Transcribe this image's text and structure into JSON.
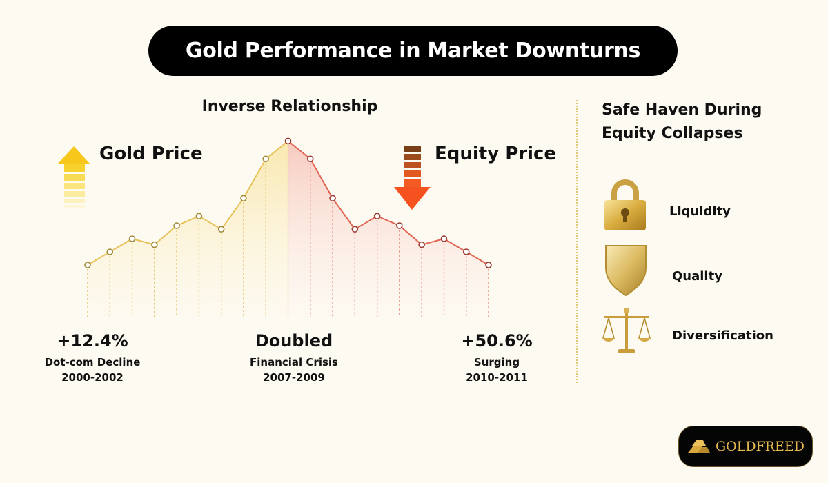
{
  "title": "Gold Performance in Market Downturns",
  "chart_data": {
    "type": "line",
    "title": "Inverse Relationship",
    "series": [
      {
        "name": "Gold Price",
        "values": [
          20,
          31,
          42,
          37,
          53,
          61,
          50,
          76,
          109,
          124
        ]
      },
      {
        "name": "Equity Price",
        "values": [
          124,
          109,
          76,
          50,
          61,
          53,
          37,
          42,
          31,
          20
        ]
      }
    ],
    "ylim": [
      0,
      130
    ],
    "colors": {
      "gold": "#e8c25a",
      "equity": "#e06452"
    }
  },
  "labels": {
    "gold_price": "Gold Price",
    "equity_price": "Equity Price"
  },
  "stats": [
    {
      "value": "+12.4%",
      "event": "Dot-com Decline",
      "years": "2000-2002"
    },
    {
      "value": "Doubled",
      "event": "Financial Crisis",
      "years": "2007-2009"
    },
    {
      "value": "+50.6%",
      "event": "Surging",
      "years": "2010-2011"
    }
  ],
  "sidebar": {
    "title_line1": "Safe Haven During",
    "title_line2": "Equity Collapses",
    "items": [
      {
        "label": "Liquidity",
        "icon": "padlock-icon"
      },
      {
        "label": "Quality",
        "icon": "shield-icon"
      },
      {
        "label": "Diversification",
        "icon": "scales-icon"
      }
    ]
  },
  "brand": {
    "name": "GOLDFREED"
  }
}
